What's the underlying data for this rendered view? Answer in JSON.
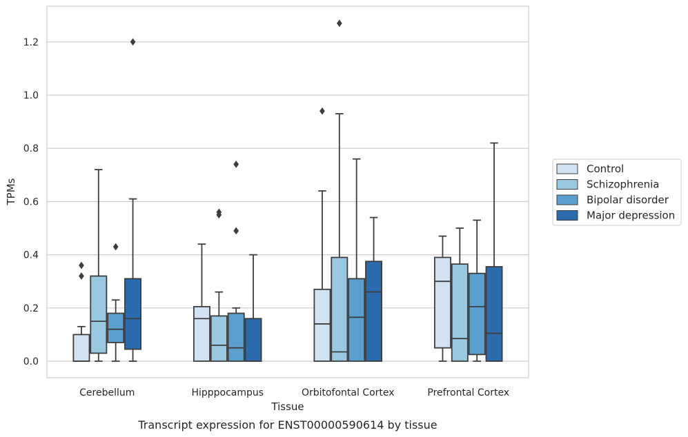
{
  "chart_data": {
    "type": "box",
    "title": "",
    "caption": "Transcript expression for ENST00000590614 by tissue",
    "xlabel": "Tissue",
    "ylabel": "TPMs",
    "ylim": [
      -0.06,
      1.34
    ],
    "yticks": [
      "0.0",
      "0.2",
      "0.4",
      "0.6",
      "0.8",
      "1.0",
      "1.2"
    ],
    "yticks_values": [
      0.0,
      0.2,
      0.4,
      0.6,
      0.8,
      1.0,
      1.2
    ],
    "grid": "horizontal",
    "legend_position": "right",
    "categories": [
      "Cerebellum",
      "Hipppocampus",
      "Orbitofontal Cortex",
      "Prefrontal Cortex"
    ],
    "series": [
      {
        "name": "Control",
        "color": "#d1e2f2",
        "boxes": [
          {
            "low": 0.0,
            "q1": 0.0,
            "median": 0.0,
            "q3": 0.1,
            "high": 0.13,
            "outliers": [
              0.32,
              0.36
            ]
          },
          {
            "low": 0.0,
            "q1": 0.0,
            "median": 0.16,
            "q3": 0.205,
            "high": 0.44,
            "outliers": []
          },
          {
            "low": 0.0,
            "q1": 0.0,
            "median": 0.14,
            "q3": 0.27,
            "high": 0.64,
            "outliers": [
              0.94
            ]
          },
          {
            "low": 0.0,
            "q1": 0.05,
            "median": 0.3,
            "q3": 0.39,
            "high": 0.47,
            "outliers": []
          }
        ]
      },
      {
        "name": "Schizophrenia",
        "color": "#9ac8e0",
        "boxes": [
          {
            "low": 0.0,
            "q1": 0.03,
            "median": 0.15,
            "q3": 0.32,
            "high": 0.72,
            "outliers": []
          },
          {
            "low": 0.0,
            "q1": 0.0,
            "median": 0.06,
            "q3": 0.17,
            "high": 0.26,
            "outliers": [
              0.55,
              0.56
            ]
          },
          {
            "low": 0.0,
            "q1": 0.0,
            "median": 0.035,
            "q3": 0.39,
            "high": 0.93,
            "outliers": [
              1.27
            ]
          },
          {
            "low": 0.0,
            "q1": 0.0,
            "median": 0.085,
            "q3": 0.365,
            "high": 0.5,
            "outliers": []
          }
        ]
      },
      {
        "name": "Bipolar disorder",
        "color": "#5a9fcd",
        "boxes": [
          {
            "low": 0.0,
            "q1": 0.07,
            "median": 0.12,
            "q3": 0.18,
            "high": 0.23,
            "outliers": [
              0.43
            ]
          },
          {
            "low": 0.0,
            "q1": 0.0,
            "median": 0.05,
            "q3": 0.18,
            "high": 0.2,
            "outliers": [
              0.49,
              0.74
            ]
          },
          {
            "low": 0.0,
            "q1": 0.0,
            "median": 0.165,
            "q3": 0.31,
            "high": 0.76,
            "outliers": []
          },
          {
            "low": 0.0,
            "q1": 0.025,
            "median": 0.205,
            "q3": 0.33,
            "high": 0.53,
            "outliers": []
          }
        ]
      },
      {
        "name": "Major depression",
        "color": "#2a6aad",
        "boxes": [
          {
            "low": 0.0,
            "q1": 0.045,
            "median": 0.16,
            "q3": 0.31,
            "high": 0.61,
            "outliers": [
              1.2
            ]
          },
          {
            "low": 0.0,
            "q1": 0.0,
            "median": 0.0,
            "q3": 0.16,
            "high": 0.4,
            "outliers": []
          },
          {
            "low": 0.0,
            "q1": 0.0,
            "median": 0.26,
            "q3": 0.375,
            "high": 0.54,
            "outliers": []
          },
          {
            "low": 0.0,
            "q1": 0.0,
            "median": 0.105,
            "q3": 0.355,
            "high": 0.82,
            "outliers": []
          }
        ]
      }
    ]
  }
}
